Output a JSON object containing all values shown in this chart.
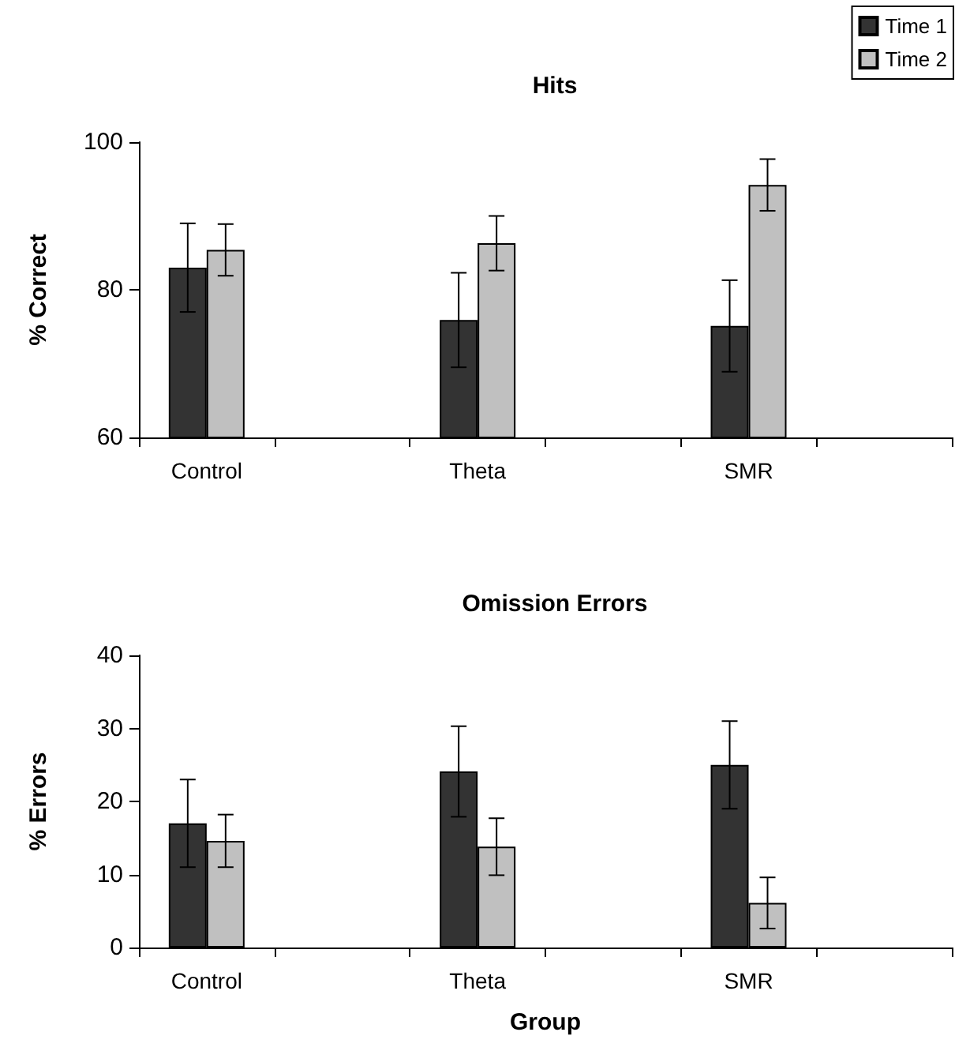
{
  "chart_data": [
    {
      "type": "bar",
      "title": "Hits",
      "ylabel": "% Correct",
      "categories": [
        "Control",
        null,
        "Theta",
        null,
        "SMR",
        null
      ],
      "ylim": [
        60,
        100
      ],
      "yticks": [
        60,
        80,
        100
      ],
      "grid": false,
      "legend": "top right",
      "series": [
        {
          "name": "Time 1",
          "color": "#333333",
          "values": [
            83.0,
            null,
            75.9,
            null,
            75.1,
            null
          ],
          "errors": [
            6.0,
            null,
            6.4,
            null,
            6.2,
            null
          ]
        },
        {
          "name": "Time 2",
          "color": "#c0c0c0",
          "values": [
            85.4,
            null,
            86.3,
            null,
            94.2,
            null
          ],
          "errors": [
            3.5,
            null,
            3.7,
            null,
            3.5,
            null
          ]
        }
      ]
    },
    {
      "type": "bar",
      "title": "Omission Errors",
      "xlabel": "Group",
      "ylabel": "% Errors",
      "categories": [
        "Control",
        null,
        "Theta",
        null,
        "SMR",
        null
      ],
      "ylim": [
        0,
        40
      ],
      "yticks": [
        0,
        10,
        20,
        30,
        40
      ],
      "grid": false,
      "legend": false,
      "series": [
        {
          "color": "#333333",
          "values": [
            17.0,
            null,
            24.1,
            null,
            25.0,
            null
          ],
          "errors": [
            6.0,
            null,
            6.2,
            null,
            6.0,
            null
          ]
        },
        {
          "color": "#c0c0c0",
          "values": [
            14.6,
            null,
            13.8,
            null,
            6.1,
            null
          ],
          "errors": [
            3.6,
            null,
            3.9,
            null,
            3.5,
            null
          ]
        }
      ]
    }
  ]
}
